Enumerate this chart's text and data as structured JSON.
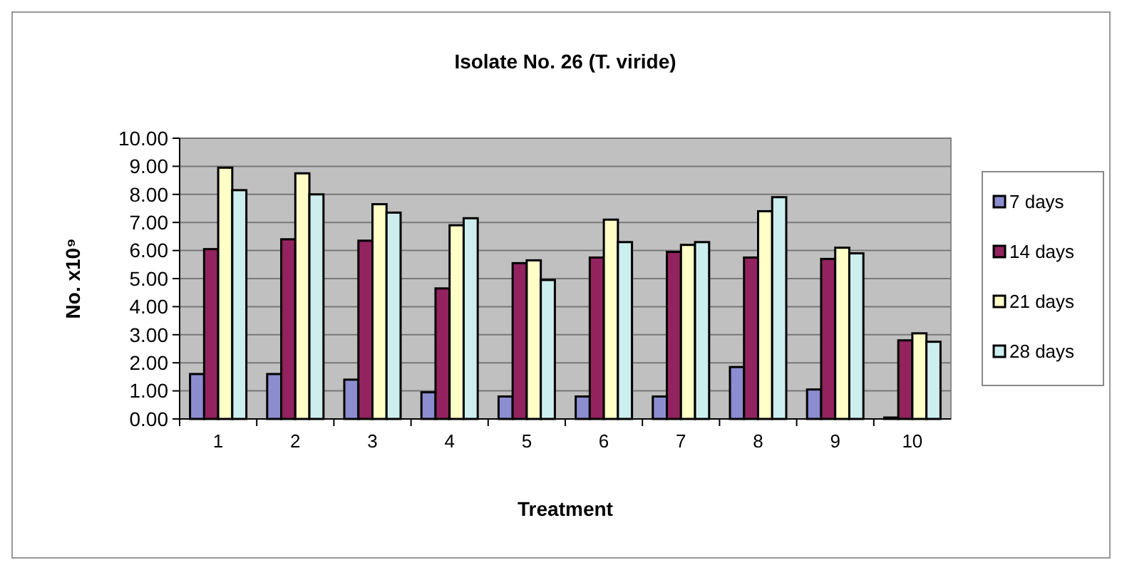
{
  "chart_data": {
    "type": "bar",
    "title": "Isolate No. 26 (T. viride)",
    "xlabel": "Treatment",
    "ylabel": "No. x10⁹",
    "categories": [
      "1",
      "2",
      "3",
      "4",
      "5",
      "6",
      "7",
      "8",
      "9",
      "10"
    ],
    "series": [
      {
        "name": "7 days",
        "color": "#8c8cd0",
        "values": [
          1.6,
          1.6,
          1.4,
          0.95,
          0.8,
          0.8,
          0.8,
          1.85,
          1.05,
          0.05
        ]
      },
      {
        "name": "14 days",
        "color": "#92235f",
        "values": [
          6.05,
          6.4,
          6.35,
          4.65,
          5.55,
          5.75,
          5.95,
          5.75,
          5.7,
          2.8
        ]
      },
      {
        "name": "21 days",
        "color": "#ffffc8",
        "values": [
          8.95,
          8.75,
          7.65,
          6.9,
          5.65,
          7.1,
          6.2,
          7.4,
          6.1,
          3.05
        ]
      },
      {
        "name": "28 days",
        "color": "#cdeeee",
        "values": [
          8.15,
          8.0,
          7.35,
          7.15,
          4.95,
          6.3,
          6.3,
          7.9,
          5.9,
          2.75
        ]
      }
    ],
    "ylim": [
      0,
      10
    ],
    "yticks": [
      {
        "value": 0,
        "label": "0.00"
      },
      {
        "value": 1,
        "label": "1.00"
      },
      {
        "value": 2,
        "label": "2.00"
      },
      {
        "value": 3,
        "label": "3.00"
      },
      {
        "value": 4,
        "label": "4.00"
      },
      {
        "value": 5,
        "label": "5.00"
      },
      {
        "value": 6,
        "label": "6.00"
      },
      {
        "value": 7,
        "label": "7.00"
      },
      {
        "value": 8,
        "label": "8.00"
      },
      {
        "value": 9,
        "label": "9.00"
      },
      {
        "value": 10,
        "label": "10.00"
      }
    ],
    "grid": "y",
    "legend": "right"
  }
}
